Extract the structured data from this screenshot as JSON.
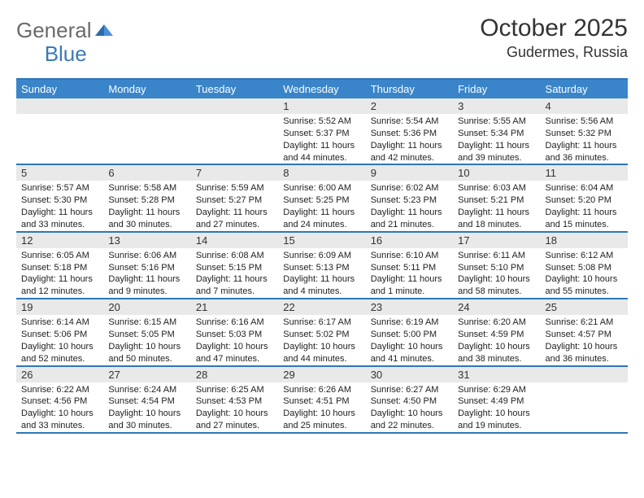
{
  "logo": {
    "text1": "General",
    "text2": "Blue"
  },
  "header": {
    "month": "October 2025",
    "location": "Gudermes, Russia"
  },
  "weekdays": [
    "Sunday",
    "Monday",
    "Tuesday",
    "Wednesday",
    "Thursday",
    "Friday",
    "Saturday"
  ],
  "colors": {
    "header_bar": "#3a85c9",
    "rule": "#2e77b8",
    "daynum_bg": "#e9e9e9",
    "text": "#222222",
    "logo_gray": "#6a6a6a",
    "logo_blue": "#3a7ab8"
  },
  "weeks": [
    [
      {
        "n": "",
        "sunrise": "",
        "sunset": "",
        "daylight": ""
      },
      {
        "n": "",
        "sunrise": "",
        "sunset": "",
        "daylight": ""
      },
      {
        "n": "",
        "sunrise": "",
        "sunset": "",
        "daylight": ""
      },
      {
        "n": "1",
        "sunrise": "Sunrise: 5:52 AM",
        "sunset": "Sunset: 5:37 PM",
        "daylight": "Daylight: 11 hours and 44 minutes."
      },
      {
        "n": "2",
        "sunrise": "Sunrise: 5:54 AM",
        "sunset": "Sunset: 5:36 PM",
        "daylight": "Daylight: 11 hours and 42 minutes."
      },
      {
        "n": "3",
        "sunrise": "Sunrise: 5:55 AM",
        "sunset": "Sunset: 5:34 PM",
        "daylight": "Daylight: 11 hours and 39 minutes."
      },
      {
        "n": "4",
        "sunrise": "Sunrise: 5:56 AM",
        "sunset": "Sunset: 5:32 PM",
        "daylight": "Daylight: 11 hours and 36 minutes."
      }
    ],
    [
      {
        "n": "5",
        "sunrise": "Sunrise: 5:57 AM",
        "sunset": "Sunset: 5:30 PM",
        "daylight": "Daylight: 11 hours and 33 minutes."
      },
      {
        "n": "6",
        "sunrise": "Sunrise: 5:58 AM",
        "sunset": "Sunset: 5:28 PM",
        "daylight": "Daylight: 11 hours and 30 minutes."
      },
      {
        "n": "7",
        "sunrise": "Sunrise: 5:59 AM",
        "sunset": "Sunset: 5:27 PM",
        "daylight": "Daylight: 11 hours and 27 minutes."
      },
      {
        "n": "8",
        "sunrise": "Sunrise: 6:00 AM",
        "sunset": "Sunset: 5:25 PM",
        "daylight": "Daylight: 11 hours and 24 minutes."
      },
      {
        "n": "9",
        "sunrise": "Sunrise: 6:02 AM",
        "sunset": "Sunset: 5:23 PM",
        "daylight": "Daylight: 11 hours and 21 minutes."
      },
      {
        "n": "10",
        "sunrise": "Sunrise: 6:03 AM",
        "sunset": "Sunset: 5:21 PM",
        "daylight": "Daylight: 11 hours and 18 minutes."
      },
      {
        "n": "11",
        "sunrise": "Sunrise: 6:04 AM",
        "sunset": "Sunset: 5:20 PM",
        "daylight": "Daylight: 11 hours and 15 minutes."
      }
    ],
    [
      {
        "n": "12",
        "sunrise": "Sunrise: 6:05 AM",
        "sunset": "Sunset: 5:18 PM",
        "daylight": "Daylight: 11 hours and 12 minutes."
      },
      {
        "n": "13",
        "sunrise": "Sunrise: 6:06 AM",
        "sunset": "Sunset: 5:16 PM",
        "daylight": "Daylight: 11 hours and 9 minutes."
      },
      {
        "n": "14",
        "sunrise": "Sunrise: 6:08 AM",
        "sunset": "Sunset: 5:15 PM",
        "daylight": "Daylight: 11 hours and 7 minutes."
      },
      {
        "n": "15",
        "sunrise": "Sunrise: 6:09 AM",
        "sunset": "Sunset: 5:13 PM",
        "daylight": "Daylight: 11 hours and 4 minutes."
      },
      {
        "n": "16",
        "sunrise": "Sunrise: 6:10 AM",
        "sunset": "Sunset: 5:11 PM",
        "daylight": "Daylight: 11 hours and 1 minute."
      },
      {
        "n": "17",
        "sunrise": "Sunrise: 6:11 AM",
        "sunset": "Sunset: 5:10 PM",
        "daylight": "Daylight: 10 hours and 58 minutes."
      },
      {
        "n": "18",
        "sunrise": "Sunrise: 6:12 AM",
        "sunset": "Sunset: 5:08 PM",
        "daylight": "Daylight: 10 hours and 55 minutes."
      }
    ],
    [
      {
        "n": "19",
        "sunrise": "Sunrise: 6:14 AM",
        "sunset": "Sunset: 5:06 PM",
        "daylight": "Daylight: 10 hours and 52 minutes."
      },
      {
        "n": "20",
        "sunrise": "Sunrise: 6:15 AM",
        "sunset": "Sunset: 5:05 PM",
        "daylight": "Daylight: 10 hours and 50 minutes."
      },
      {
        "n": "21",
        "sunrise": "Sunrise: 6:16 AM",
        "sunset": "Sunset: 5:03 PM",
        "daylight": "Daylight: 10 hours and 47 minutes."
      },
      {
        "n": "22",
        "sunrise": "Sunrise: 6:17 AM",
        "sunset": "Sunset: 5:02 PM",
        "daylight": "Daylight: 10 hours and 44 minutes."
      },
      {
        "n": "23",
        "sunrise": "Sunrise: 6:19 AM",
        "sunset": "Sunset: 5:00 PM",
        "daylight": "Daylight: 10 hours and 41 minutes."
      },
      {
        "n": "24",
        "sunrise": "Sunrise: 6:20 AM",
        "sunset": "Sunset: 4:59 PM",
        "daylight": "Daylight: 10 hours and 38 minutes."
      },
      {
        "n": "25",
        "sunrise": "Sunrise: 6:21 AM",
        "sunset": "Sunset: 4:57 PM",
        "daylight": "Daylight: 10 hours and 36 minutes."
      }
    ],
    [
      {
        "n": "26",
        "sunrise": "Sunrise: 6:22 AM",
        "sunset": "Sunset: 4:56 PM",
        "daylight": "Daylight: 10 hours and 33 minutes."
      },
      {
        "n": "27",
        "sunrise": "Sunrise: 6:24 AM",
        "sunset": "Sunset: 4:54 PM",
        "daylight": "Daylight: 10 hours and 30 minutes."
      },
      {
        "n": "28",
        "sunrise": "Sunrise: 6:25 AM",
        "sunset": "Sunset: 4:53 PM",
        "daylight": "Daylight: 10 hours and 27 minutes."
      },
      {
        "n": "29",
        "sunrise": "Sunrise: 6:26 AM",
        "sunset": "Sunset: 4:51 PM",
        "daylight": "Daylight: 10 hours and 25 minutes."
      },
      {
        "n": "30",
        "sunrise": "Sunrise: 6:27 AM",
        "sunset": "Sunset: 4:50 PM",
        "daylight": "Daylight: 10 hours and 22 minutes."
      },
      {
        "n": "31",
        "sunrise": "Sunrise: 6:29 AM",
        "sunset": "Sunset: 4:49 PM",
        "daylight": "Daylight: 10 hours and 19 minutes."
      },
      {
        "n": "",
        "sunrise": "",
        "sunset": "",
        "daylight": ""
      }
    ]
  ]
}
